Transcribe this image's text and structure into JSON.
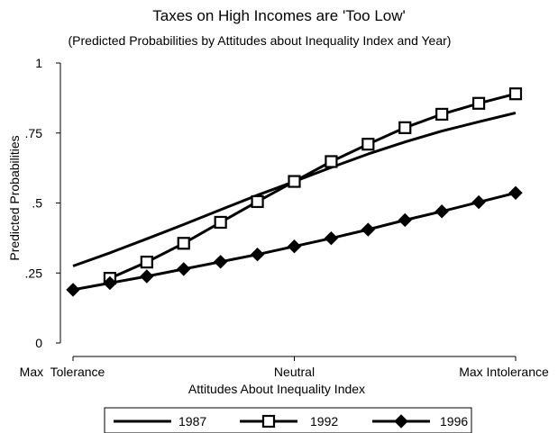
{
  "chart_data": {
    "type": "line",
    "title": "Taxes on High Incomes are 'Too Low'",
    "subtitle": "(Predicted Probabilities by Attitudes about Inequality Index and Year)",
    "xlabel": "Attitudes About Inequality Index",
    "ylabel": "Predicted Probabilities",
    "x_tick_labels": [
      "Max  Tolerance",
      "Neutral",
      "Max Intolerance"
    ],
    "x_tick_positions": [
      0,
      6,
      12
    ],
    "xlim": [
      0,
      12
    ],
    "ylim": [
      0,
      1
    ],
    "y_ticks": [
      {
        "value": 0,
        "label": "0"
      },
      {
        "value": 0.25,
        "label": ".25"
      },
      {
        "value": 0.5,
        "label": ".5"
      },
      {
        "value": 0.75,
        "label": ".75"
      },
      {
        "value": 1,
        "label": "1"
      }
    ],
    "grid": false,
    "legend_position": "bottom",
    "series": [
      {
        "name": "1987",
        "marker": "none",
        "x": [
          0,
          1,
          2,
          3,
          4,
          5,
          6,
          7,
          8,
          9,
          10,
          11,
          12
        ],
        "values": [
          0.275,
          0.322,
          0.372,
          0.423,
          0.476,
          0.528,
          0.577,
          0.627,
          0.675,
          0.718,
          0.757,
          0.79,
          0.822
        ]
      },
      {
        "name": "1992",
        "marker": "hollow-square",
        "x": [
          1,
          2,
          3,
          4,
          5,
          6,
          7,
          8,
          9,
          10,
          11,
          12
        ],
        "values": [
          0.231,
          0.289,
          0.356,
          0.431,
          0.505,
          0.577,
          0.648,
          0.71,
          0.769,
          0.817,
          0.856,
          0.89
        ]
      },
      {
        "name": "1996",
        "marker": "filled-diamond",
        "x": [
          0,
          1,
          2,
          3,
          4,
          5,
          6,
          7,
          8,
          9,
          10,
          11,
          12
        ],
        "values": [
          0.19,
          0.214,
          0.238,
          0.264,
          0.29,
          0.316,
          0.345,
          0.374,
          0.405,
          0.439,
          0.47,
          0.503,
          0.536
        ]
      }
    ]
  }
}
